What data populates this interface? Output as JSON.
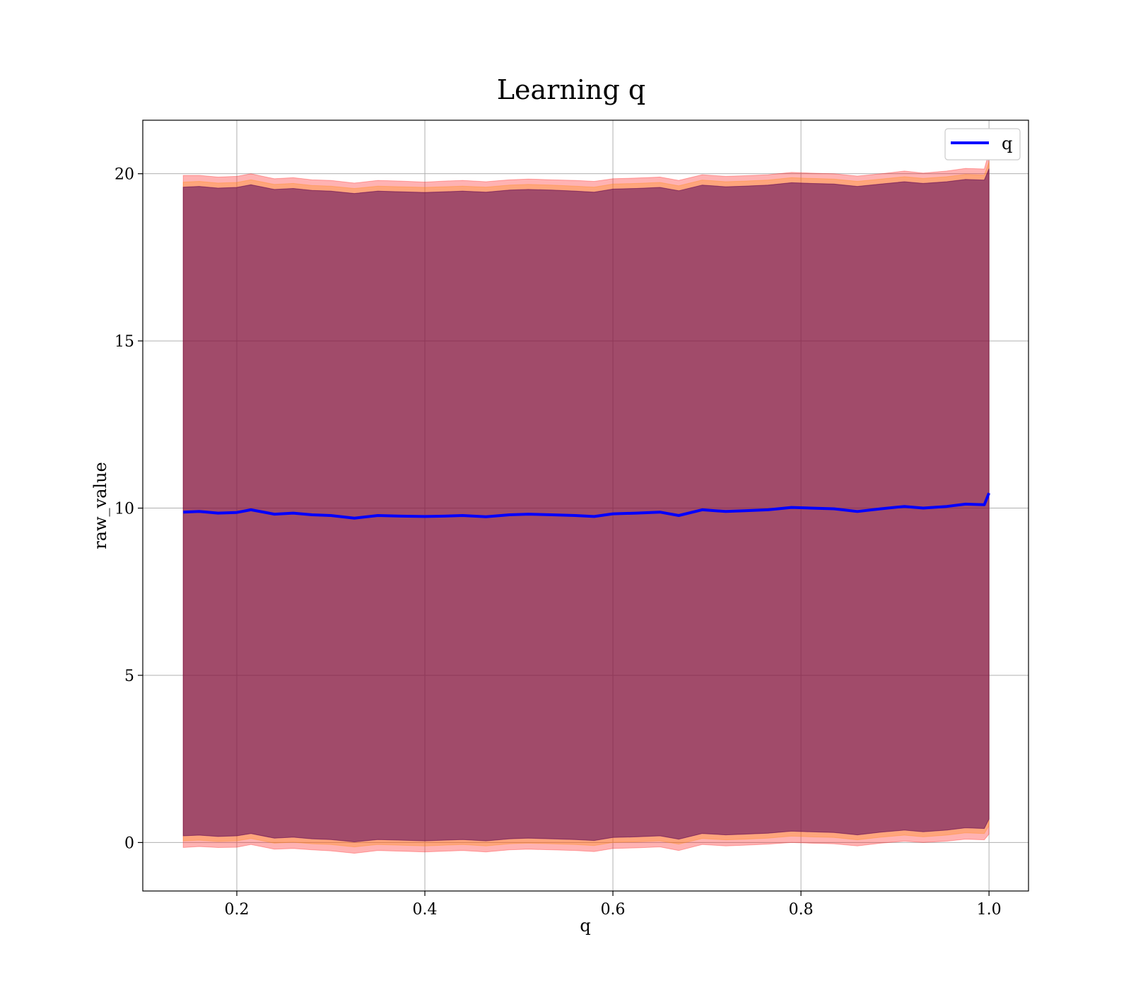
{
  "chart_data": {
    "type": "area",
    "title": "Learning q",
    "xlabel": "q",
    "ylabel": "raw_value",
    "xlim": [
      0.1,
      1.042
    ],
    "ylim": [
      -1.45,
      21.6
    ],
    "xticks": [
      0.2,
      0.4,
      0.6,
      0.8,
      1.0
    ],
    "xtick_labels": [
      "0.2",
      "0.4",
      "0.6",
      "0.8",
      "1.0"
    ],
    "yticks": [
      0,
      5,
      10,
      15,
      20
    ],
    "ytick_labels": [
      "0",
      "5",
      "10",
      "15",
      "20"
    ],
    "grid": true,
    "legend_position": "top-right",
    "x": [
      0.143,
      0.16,
      0.18,
      0.2,
      0.215,
      0.24,
      0.26,
      0.28,
      0.3,
      0.325,
      0.35,
      0.375,
      0.4,
      0.42,
      0.44,
      0.465,
      0.49,
      0.51,
      0.535,
      0.56,
      0.58,
      0.6,
      0.625,
      0.65,
      0.67,
      0.695,
      0.72,
      0.74,
      0.765,
      0.79,
      0.81,
      0.835,
      0.86,
      0.885,
      0.91,
      0.93,
      0.955,
      0.975,
      0.995,
      1.0
    ],
    "series": [
      {
        "name": "q",
        "color": "#0000ff",
        "values": [
          9.88,
          9.9,
          9.85,
          9.87,
          9.95,
          9.82,
          9.85,
          9.8,
          9.78,
          9.7,
          9.78,
          9.76,
          9.75,
          9.76,
          9.78,
          9.74,
          9.8,
          9.82,
          9.8,
          9.78,
          9.75,
          9.83,
          9.85,
          9.88,
          9.78,
          9.95,
          9.9,
          9.92,
          9.95,
          10.02,
          10.0,
          9.98,
          9.9,
          9.98,
          10.05,
          10.0,
          10.05,
          10.12,
          10.1,
          10.45
        ]
      }
    ],
    "bands": [
      {
        "color": "#ff0000",
        "opacity": 0.3,
        "upper": [
          19.95,
          19.95,
          19.9,
          19.92,
          20.0,
          19.85,
          19.88,
          19.82,
          19.8,
          19.72,
          19.8,
          19.78,
          19.75,
          19.78,
          19.8,
          19.76,
          19.82,
          19.84,
          19.82,
          19.8,
          19.77,
          19.85,
          19.87,
          19.9,
          19.8,
          19.97,
          19.92,
          19.94,
          19.97,
          20.04,
          20.02,
          20.0,
          19.93,
          20.0,
          20.08,
          20.02,
          20.08,
          20.16,
          20.14,
          20.65
        ],
        "lower": [
          -0.15,
          -0.12,
          -0.15,
          -0.14,
          -0.06,
          -0.2,
          -0.18,
          -0.22,
          -0.25,
          -0.32,
          -0.24,
          -0.26,
          -0.28,
          -0.26,
          -0.24,
          -0.28,
          -0.22,
          -0.2,
          -0.22,
          -0.24,
          -0.27,
          -0.18,
          -0.16,
          -0.13,
          -0.24,
          -0.06,
          -0.1,
          -0.08,
          -0.05,
          0.0,
          -0.02,
          -0.04,
          -0.1,
          -0.02,
          0.04,
          0.0,
          0.04,
          0.1,
          0.08,
          0.25
        ]
      },
      {
        "color": "#ff8800",
        "opacity": 0.3,
        "upper": [
          19.75,
          19.77,
          19.72,
          19.74,
          19.82,
          19.68,
          19.71,
          19.65,
          19.63,
          19.56,
          19.63,
          19.61,
          19.59,
          19.61,
          19.63,
          19.6,
          19.66,
          19.68,
          19.66,
          19.63,
          19.6,
          19.69,
          19.71,
          19.74,
          19.64,
          19.81,
          19.76,
          19.78,
          19.81,
          19.88,
          19.86,
          19.84,
          19.77,
          19.84,
          19.91,
          19.86,
          19.91,
          19.98,
          19.96,
          20.35
        ],
        "lower": [
          0.05,
          0.07,
          0.03,
          0.05,
          0.12,
          -0.02,
          0.01,
          -0.04,
          -0.06,
          -0.13,
          -0.06,
          -0.08,
          -0.1,
          -0.08,
          -0.06,
          -0.1,
          -0.04,
          -0.02,
          -0.04,
          -0.06,
          -0.09,
          0.0,
          0.02,
          0.05,
          -0.05,
          0.12,
          0.08,
          0.1,
          0.13,
          0.19,
          0.17,
          0.15,
          0.08,
          0.16,
          0.22,
          0.17,
          0.22,
          0.29,
          0.27,
          0.5
        ]
      },
      {
        "color": "#0000ff",
        "opacity": 0.3,
        "upper": [
          19.6,
          19.62,
          19.57,
          19.59,
          19.67,
          19.53,
          19.56,
          19.5,
          19.48,
          19.41,
          19.48,
          19.46,
          19.44,
          19.46,
          19.48,
          19.45,
          19.51,
          19.53,
          19.51,
          19.48,
          19.45,
          19.54,
          19.56,
          19.59,
          19.49,
          19.66,
          19.61,
          19.63,
          19.66,
          19.73,
          19.71,
          19.69,
          19.62,
          19.69,
          19.76,
          19.71,
          19.76,
          19.83,
          19.81,
          20.15
        ],
        "lower": [
          0.2,
          0.22,
          0.18,
          0.2,
          0.27,
          0.13,
          0.16,
          0.11,
          0.09,
          0.02,
          0.09,
          0.07,
          0.05,
          0.07,
          0.09,
          0.05,
          0.11,
          0.13,
          0.11,
          0.09,
          0.06,
          0.15,
          0.17,
          0.2,
          0.1,
          0.27,
          0.23,
          0.25,
          0.28,
          0.34,
          0.32,
          0.3,
          0.23,
          0.31,
          0.37,
          0.32,
          0.37,
          0.44,
          0.42,
          0.7
        ]
      },
      {
        "color": "#800000",
        "opacity": 0.35,
        "upper": [
          19.6,
          19.62,
          19.57,
          19.59,
          19.67,
          19.53,
          19.56,
          19.5,
          19.48,
          19.41,
          19.48,
          19.46,
          19.44,
          19.46,
          19.48,
          19.45,
          19.51,
          19.53,
          19.51,
          19.48,
          19.45,
          19.54,
          19.56,
          19.59,
          19.49,
          19.66,
          19.61,
          19.63,
          19.66,
          19.73,
          19.71,
          19.69,
          19.62,
          19.69,
          19.76,
          19.71,
          19.76,
          19.83,
          19.81,
          20.15
        ],
        "lower": [
          0.2,
          0.22,
          0.18,
          0.2,
          0.27,
          0.13,
          0.16,
          0.11,
          0.09,
          0.02,
          0.09,
          0.07,
          0.05,
          0.07,
          0.09,
          0.05,
          0.11,
          0.13,
          0.11,
          0.09,
          0.06,
          0.15,
          0.17,
          0.2,
          0.1,
          0.27,
          0.23,
          0.25,
          0.28,
          0.34,
          0.32,
          0.3,
          0.23,
          0.31,
          0.37,
          0.32,
          0.37,
          0.44,
          0.42,
          0.7
        ]
      }
    ]
  }
}
